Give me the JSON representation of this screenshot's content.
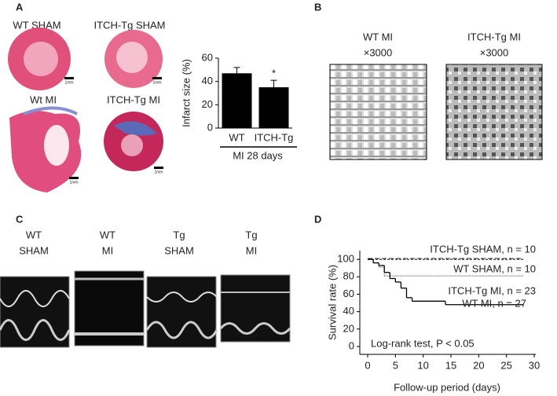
{
  "panel_labels": [
    "A",
    "B",
    "C",
    "D"
  ],
  "histology": {
    "images": [
      {
        "caption": "WT SHAM",
        "scale": "1mm"
      },
      {
        "caption": "ITCH-Tg SHAM",
        "scale": "1mm"
      },
      {
        "caption": "Wt MI",
        "scale": "1mm"
      },
      {
        "caption": "ITCH-Tg MI",
        "scale": "1mm"
      }
    ]
  },
  "em": {
    "images": [
      {
        "caption": "WT MI",
        "magnification": "×3000"
      },
      {
        "caption": "ITCH-Tg MI",
        "magnification": "×3000"
      }
    ]
  },
  "echo": {
    "images": [
      {
        "caption": [
          "WT",
          "SHAM"
        ]
      },
      {
        "caption": [
          "WT",
          "MI"
        ]
      },
      {
        "caption": [
          "Tg",
          "SHAM"
        ]
      },
      {
        "caption": [
          "Tg",
          "MI"
        ]
      }
    ]
  },
  "chart_data": [
    {
      "type": "bar",
      "ylabel": "Infarct size (%)",
      "categories": [
        "WT",
        "ITCH-Tg"
      ],
      "values": [
        47,
        35
      ],
      "errors": [
        5,
        6
      ],
      "color": "#000000",
      "annotation": "*",
      "group_label": "MI 28 days",
      "ylim": [
        0,
        60
      ],
      "yticks": [
        0,
        20,
        40,
        60
      ]
    },
    {
      "type": "line",
      "xlabel": "Follow-up period (days)",
      "ylabel": "Survival rate (%)",
      "annotation": "Log-rank test, P < 0.05",
      "series": [
        {
          "name": "ITCH-Tg SHAM, n = 10",
          "color": "#555555",
          "dash": "6,3",
          "x": [
            0,
            28
          ],
          "values": [
            101,
            101
          ]
        },
        {
          "name": "WT SHAM, n = 10",
          "color": "#333333",
          "dash": "3,2",
          "x": [
            0,
            28
          ],
          "values": [
            100,
            100
          ]
        },
        {
          "name": "ITCH-Tg MI, n = 23",
          "color": "#777777",
          "dash": "1,1",
          "x": [
            0,
            1,
            2,
            3,
            28
          ],
          "values": [
            100,
            96,
            91,
            81,
            81
          ]
        },
        {
          "name": "WT MI, n = 27",
          "color": "#000000",
          "dash": "none",
          "x": [
            0,
            1,
            2,
            3,
            4,
            5,
            6,
            7,
            8,
            14,
            28
          ],
          "values": [
            100,
            96,
            93,
            85,
            78,
            74,
            67,
            56,
            52,
            48,
            48
          ]
        }
      ],
      "xlim": [
        0,
        30
      ],
      "xticks": [
        0,
        5,
        10,
        15,
        20,
        25,
        30
      ],
      "ylim": [
        0,
        110
      ],
      "yticks": [
        0,
        20,
        40,
        60,
        80,
        100
      ]
    }
  ]
}
